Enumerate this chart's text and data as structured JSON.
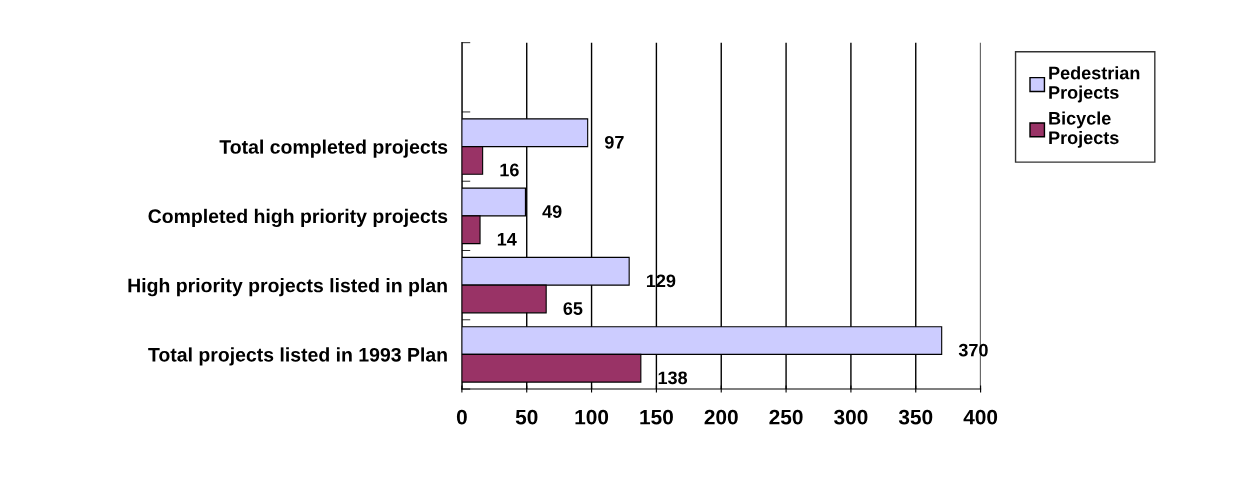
{
  "chart_data": {
    "type": "bar",
    "orientation": "horizontal",
    "categories": [
      null,
      "Total completed projects",
      "Completed high priority projects",
      "High priority projects listed in plan",
      "Total projects listed in 1993 Plan"
    ],
    "series": [
      {
        "name": "Pedestrian Projects",
        "color": "#ccccff",
        "values": [
          null,
          97,
          49,
          129,
          370
        ]
      },
      {
        "name": "Bicycle Projects",
        "color": "#993366",
        "values": [
          null,
          16,
          14,
          65,
          138
        ]
      }
    ],
    "xlim": [
      0,
      400
    ],
    "xticks": [
      0,
      50,
      100,
      150,
      200,
      250,
      300,
      350,
      400
    ],
    "grid": "x",
    "legend": "top right",
    "data_labels": true
  }
}
